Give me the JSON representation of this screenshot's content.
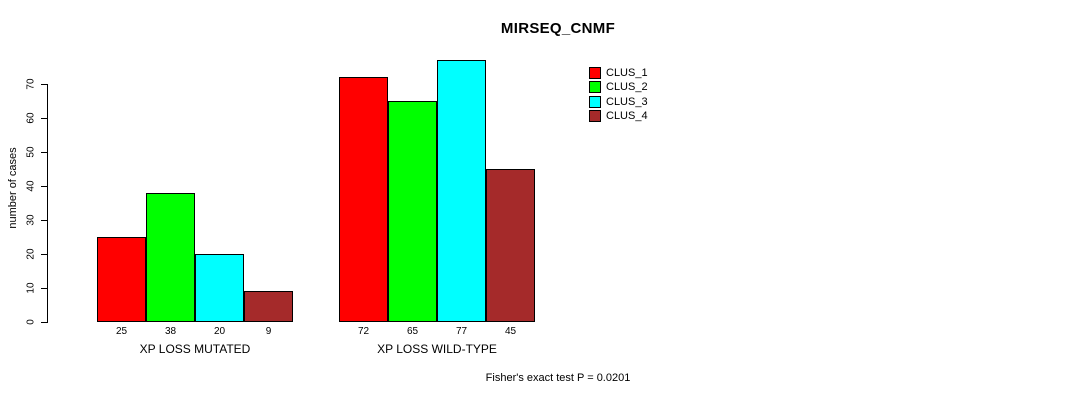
{
  "chart_data": {
    "type": "bar",
    "title": "MIRSEQ_CNMF",
    "ylabel": "number of cases",
    "ylim": [
      0,
      70
    ],
    "yticks": [
      0,
      10,
      20,
      30,
      40,
      50,
      60,
      70
    ],
    "grid": false,
    "legend_position": "top-right",
    "groups": [
      {
        "label": "XP LOSS MUTATED",
        "values": [
          25,
          38,
          20,
          9
        ]
      },
      {
        "label": "XP LOSS WILD-TYPE",
        "values": [
          72,
          65,
          77,
          45
        ]
      }
    ],
    "series": [
      {
        "name": "CLUS_1",
        "color": "#FF0000"
      },
      {
        "name": "CLUS_2",
        "color": "#00FF00"
      },
      {
        "name": "CLUS_3",
        "color": "#00FFFF"
      },
      {
        "name": "CLUS_4",
        "color": "#A52A2A"
      }
    ],
    "annotation": "Fisher's exact test P = 0.0201"
  }
}
